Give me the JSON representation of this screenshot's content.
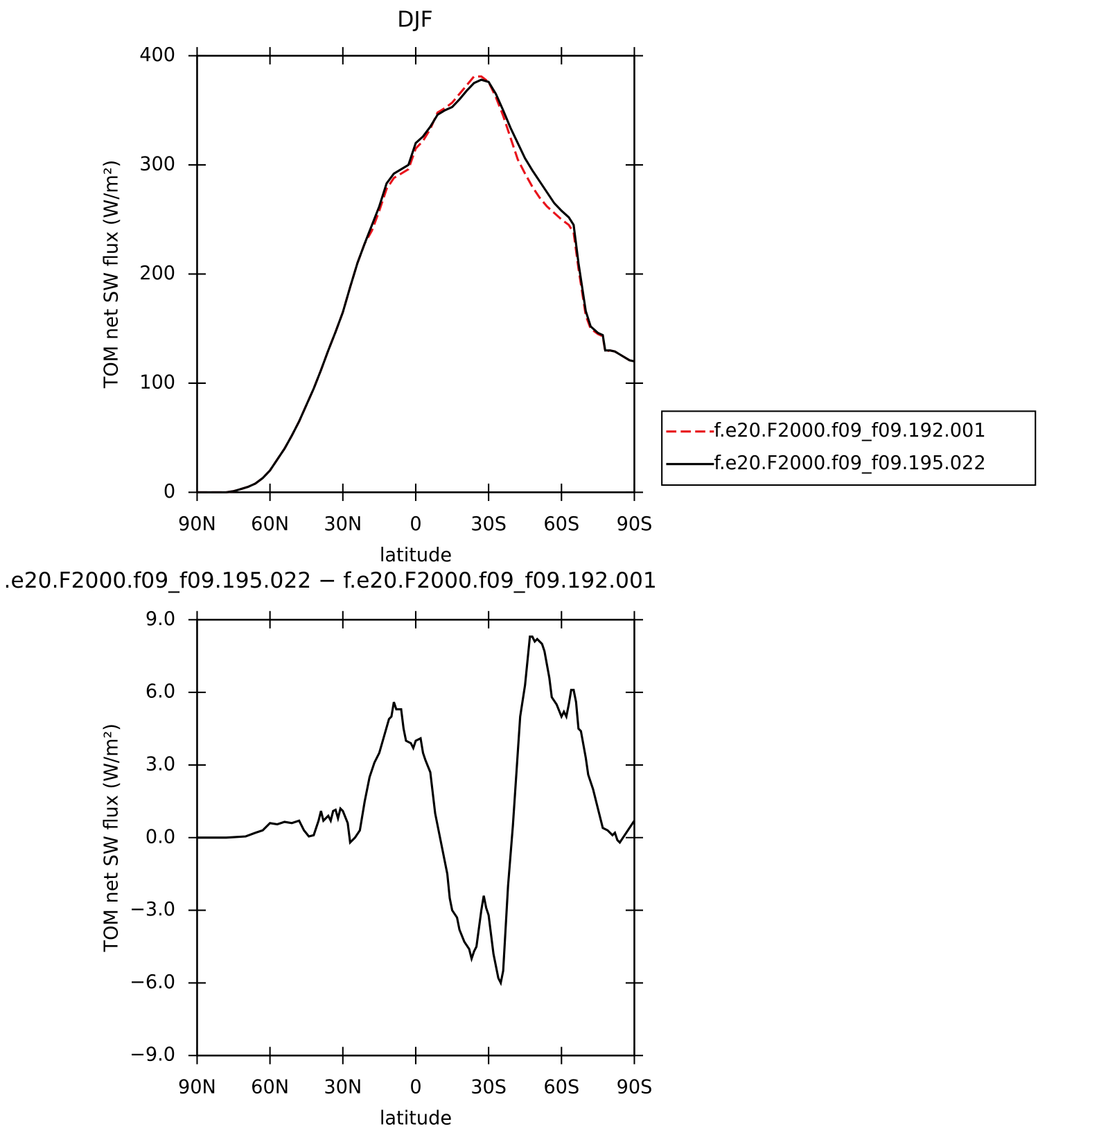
{
  "chart_data": [
    {
      "type": "line",
      "title": "DJF",
      "xlabel": "latitude",
      "ylabel": "TOM net SW flux (W/m²)",
      "xlim": [
        90,
        -90
      ],
      "xticks": [
        {
          "value": 90,
          "label": "90N"
        },
        {
          "value": 60,
          "label": "60N"
        },
        {
          "value": 30,
          "label": "30N"
        },
        0,
        {
          "value": -30,
          "label": "30S"
        },
        {
          "value": -60,
          "label": "60S"
        },
        {
          "value": -90,
          "label": "90S"
        }
      ],
      "ylim": [
        0,
        400
      ],
      "yticks": [
        0,
        100,
        200,
        300,
        400
      ],
      "legend": "outside right",
      "x": [
        90,
        84,
        78,
        75,
        72,
        69,
        66,
        63,
        60,
        57,
        54,
        51,
        48,
        45,
        42,
        39,
        36,
        33,
        30,
        27,
        24,
        21,
        18,
        15,
        12,
        9,
        6,
        3,
        0,
        -3,
        -6,
        -9,
        -12,
        -15,
        -18,
        -21,
        -24,
        -27,
        -30,
        -33,
        -36,
        -39,
        -42,
        -45,
        -48,
        -51,
        -54,
        -57,
        -60,
        -63,
        -65,
        -67,
        -70,
        -72,
        -75,
        -77,
        -78,
        -80,
        -82,
        -85,
        -88,
        -90
      ],
      "series": [
        {
          "name": "f.e20.F2000.f09_f09.192.001",
          "color": "#e8141c",
          "line_style": "dashed",
          "values": [
            0,
            0,
            0,
            1,
            3,
            5,
            8,
            13,
            20,
            30,
            40,
            52,
            65,
            80,
            95,
            112,
            130,
            147,
            165,
            188,
            210,
            228,
            240,
            258,
            278,
            288,
            292,
            296,
            315,
            322,
            333,
            348,
            352,
            357,
            365,
            373,
            381,
            381,
            376,
            362,
            345,
            325,
            305,
            292,
            280,
            270,
            262,
            256,
            250,
            245,
            238,
            205,
            162,
            150,
            145,
            143,
            129,
            130,
            129,
            125,
            121,
            120
          ]
        },
        {
          "name": "f.e20.F2000.f09_f09.195.022",
          "color": "#000000",
          "line_style": "solid",
          "values": [
            0,
            0,
            0,
            1,
            3,
            5,
            8,
            13,
            20,
            30,
            40,
            52,
            65,
            80,
            95,
            112,
            130,
            147,
            165,
            188,
            210,
            228,
            245,
            262,
            283,
            292,
            296,
            300,
            320,
            326,
            335,
            346,
            350,
            353,
            360,
            368,
            375,
            378,
            376,
            365,
            350,
            334,
            320,
            306,
            295,
            285,
            275,
            265,
            258,
            252,
            245,
            210,
            166,
            152,
            146,
            144,
            130,
            130,
            129,
            125,
            121,
            120
          ]
        }
      ]
    },
    {
      "type": "line",
      "title": ".e20.F2000.f09_f09.195.022 − f.e20.F2000.f09_f09.192.001",
      "xlabel": "latitude",
      "ylabel": "TOM net SW flux (W/m²)",
      "xlim": [
        90,
        -90
      ],
      "xticks": [
        {
          "value": 90,
          "label": "90N"
        },
        {
          "value": 60,
          "label": "60N"
        },
        {
          "value": 30,
          "label": "30N"
        },
        0,
        {
          "value": -30,
          "label": "30S"
        },
        {
          "value": -60,
          "label": "60S"
        },
        {
          "value": -90,
          "label": "90S"
        }
      ],
      "ylim": [
        -9,
        9
      ],
      "yticks": [
        {
          "value": -9,
          "label": "−9.0"
        },
        {
          "value": -6,
          "label": "−6.0"
        },
        {
          "value": -3,
          "label": "−3.0"
        },
        {
          "value": 0,
          "label": "0.0"
        },
        {
          "value": 3,
          "label": "3.0"
        },
        {
          "value": 6,
          "label": "6.0"
        },
        {
          "value": 9,
          "label": "9.0"
        }
      ],
      "x": [
        90,
        78,
        70,
        66,
        63,
        60,
        57,
        54,
        51,
        48,
        46,
        44,
        42,
        40,
        39,
        38,
        36,
        35,
        34,
        33,
        32,
        31,
        30,
        28,
        27,
        25,
        23,
        21,
        19,
        17,
        15,
        13,
        11,
        10,
        9,
        8,
        6,
        5,
        4,
        2,
        1,
        0,
        -2,
        -3,
        -4,
        -6,
        -8,
        -11,
        -13,
        -14,
        -15,
        -17,
        -18,
        -20,
        -22,
        -23,
        -24,
        -25,
        -27,
        -28,
        -29,
        -30,
        -32,
        -34,
        -35,
        -36,
        -38,
        -40,
        -42,
        -43,
        -45,
        -47,
        -48,
        -49,
        -50,
        -52,
        -53,
        -55,
        -56,
        -58,
        -60,
        -61,
        -62,
        -63,
        -64,
        -65,
        -66,
        -67,
        -68,
        -70,
        -71,
        -73,
        -75,
        -77,
        -79,
        -81,
        -82,
        -83,
        -84,
        -86,
        -88,
        -90
      ],
      "series": [
        {
          "name": null,
          "color": "#000000",
          "line_style": "solid",
          "values": [
            0,
            0,
            0.05,
            0.2,
            0.3,
            0.6,
            0.55,
            0.65,
            0.6,
            0.7,
            0.3,
            0.05,
            0.1,
            0.7,
            1.1,
            0.7,
            0.9,
            0.7,
            1.1,
            1.15,
            0.8,
            1.2,
            1.1,
            0.6,
            -0.2,
            0,
            0.3,
            1.5,
            2.5,
            3.1,
            3.5,
            4.2,
            4.9,
            5,
            5.6,
            5.3,
            5.3,
            4.5,
            4,
            3.9,
            3.7,
            4,
            4.1,
            3.5,
            3.2,
            2.7,
            1,
            -0.5,
            -1.5,
            -2.5,
            -3,
            -3.3,
            -3.8,
            -4.3,
            -4.6,
            -5,
            -4.7,
            -4.5,
            -3,
            -2.4,
            -2.9,
            -3.2,
            -4.8,
            -5.8,
            -6,
            -5.5,
            -2,
            0.5,
            3.5,
            5,
            6.3,
            8.3,
            8.3,
            8.1,
            8.2,
            8,
            7.7,
            6.6,
            5.8,
            5.5,
            5,
            5.2,
            5,
            5.5,
            6.1,
            6.1,
            5.6,
            4.5,
            4.4,
            3.3,
            2.6,
            2,
            1.2,
            0.4,
            0.3,
            0.1,
            0.2,
            -0.1,
            -0.2,
            0.1,
            0.4,
            0.7
          ]
        }
      ]
    }
  ]
}
